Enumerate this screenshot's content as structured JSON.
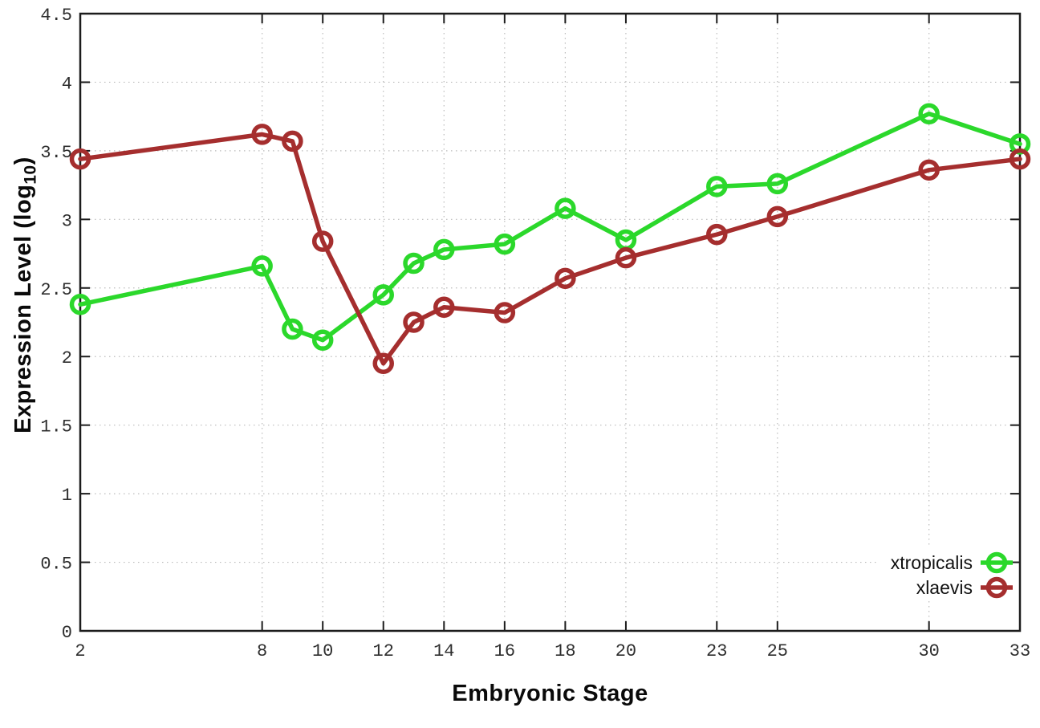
{
  "chart_data": {
    "type": "line",
    "title": "",
    "xlabel": "Embryonic Stage",
    "ylabel": "Expression Level (log10)",
    "ylabel_parts": {
      "prefix": "Expression Level (log",
      "subscript": "10",
      "suffix": ")"
    },
    "xlim": [
      2,
      33
    ],
    "ylim": [
      0,
      4.5
    ],
    "xticks": [
      2,
      8,
      10,
      12,
      14,
      16,
      18,
      20,
      23,
      25,
      30,
      33
    ],
    "yticks": [
      0,
      0.5,
      1,
      1.5,
      2,
      2.5,
      3,
      3.5,
      4,
      4.5
    ],
    "grid": true,
    "legend_position": "bottom-right",
    "x": [
      2,
      8,
      9,
      10,
      12,
      13,
      14,
      16,
      18,
      20,
      23,
      25,
      30,
      33
    ],
    "series": [
      {
        "name": "xtropicalis",
        "color": "#2bd82b",
        "values": [
          2.38,
          2.66,
          2.2,
          2.12,
          2.45,
          2.68,
          2.78,
          2.82,
          3.08,
          2.85,
          3.24,
          3.26,
          3.77,
          3.55
        ]
      },
      {
        "name": "xlaevis",
        "color": "#a52e2e",
        "values": [
          3.44,
          3.62,
          3.57,
          2.84,
          1.95,
          2.25,
          2.36,
          2.32,
          2.57,
          2.72,
          2.89,
          3.02,
          3.36,
          3.44
        ]
      }
    ],
    "style": {
      "grid_color": "#bbbbbb",
      "border_color": "#1c1c1c",
      "tick_label_color": "#2e2e2e",
      "legend_text_color": "#111111"
    }
  }
}
